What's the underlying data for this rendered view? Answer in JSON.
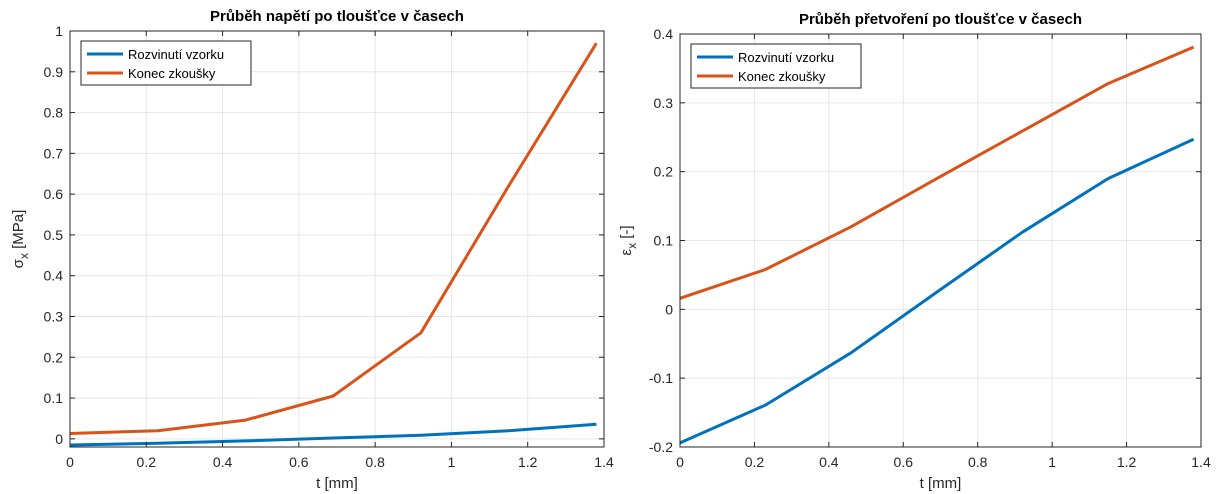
{
  "colors": {
    "series1": "#0072bd",
    "series2": "#d95319",
    "grid": "#e6e6e6",
    "axis": "#262626"
  },
  "chart_data": [
    {
      "type": "line",
      "title": "Průběh napětí po tloušťce v časech",
      "xlabel": "t [mm]",
      "ylabel_main": "σ",
      "ylabel_sub": "x",
      "ylabel_unit": " [MPa]",
      "xlim": [
        0,
        1.4
      ],
      "ylim": [
        -0.02,
        1
      ],
      "xticks": [
        0,
        0.2,
        0.4,
        0.6,
        0.8,
        1,
        1.2,
        1.4
      ],
      "xticklabels": [
        "0",
        "0.2",
        "0.4",
        "0.6",
        "0.8",
        "1",
        "1.2",
        "1.4"
      ],
      "yticks": [
        0,
        0.1,
        0.2,
        0.3,
        0.4,
        0.5,
        0.6,
        0.7,
        0.8,
        0.9,
        1
      ],
      "yticklabels": [
        "0",
        "0.1",
        "0.2",
        "0.3",
        "0.4",
        "0.5",
        "0.6",
        "0.7",
        "0.8",
        "0.9",
        "1"
      ],
      "grid": true,
      "legend_position": "top-left",
      "series": [
        {
          "name": "Rozvinutí vzorku",
          "x": [
            0,
            0.23,
            0.46,
            0.69,
            0.92,
            1.15,
            1.38
          ],
          "y": [
            -0.015,
            -0.011,
            -0.005,
            0.002,
            0.009,
            0.02,
            0.036
          ]
        },
        {
          "name": "Konec zkoušky",
          "x": [
            0,
            0.23,
            0.46,
            0.69,
            0.92,
            1.15,
            1.38
          ],
          "y": [
            0.013,
            0.02,
            0.046,
            0.105,
            0.26,
            0.62,
            0.97
          ]
        }
      ]
    },
    {
      "type": "line",
      "title": "Průběh přetvoření po tloušťce v časech",
      "xlabel": "t [mm]",
      "ylabel_main": "ε",
      "ylabel_sub": "x",
      "ylabel_unit": " [-]",
      "xlim": [
        0,
        1.4
      ],
      "ylim": [
        -0.2,
        0.4
      ],
      "xticks": [
        0,
        0.2,
        0.4,
        0.6,
        0.8,
        1,
        1.2,
        1.4
      ],
      "xticklabels": [
        "0",
        "0.2",
        "0.4",
        "0.6",
        "0.8",
        "1",
        "1.2",
        "1.4"
      ],
      "yticks": [
        -0.2,
        -0.1,
        0,
        0.1,
        0.2,
        0.3,
        0.4
      ],
      "yticklabels": [
        "-0.2",
        "-0.1",
        "0",
        "0.1",
        "0.2",
        "0.3",
        "0.4"
      ],
      "grid": true,
      "legend_position": "top-left",
      "series": [
        {
          "name": "Rozvinutí vzorku",
          "x": [
            0,
            0.23,
            0.46,
            0.69,
            0.92,
            1.15,
            1.38
          ],
          "y": [
            -0.194,
            -0.139,
            -0.063,
            0.025,
            0.112,
            0.19,
            0.247
          ]
        },
        {
          "name": "Konec zkoušky",
          "x": [
            0,
            0.23,
            0.46,
            0.69,
            0.92,
            1.15,
            1.38
          ],
          "y": [
            0.016,
            0.058,
            0.12,
            0.19,
            0.259,
            0.328,
            0.381
          ]
        }
      ]
    }
  ]
}
